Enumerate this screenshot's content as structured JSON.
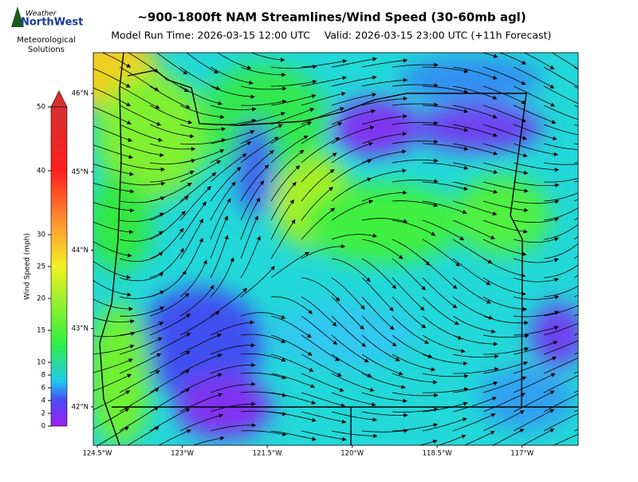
{
  "logo": {
    "brand_top": "Weather",
    "brand_main": "NorthWest",
    "line1": "Meteorological",
    "line2": "Solutions"
  },
  "title": "~900-1800ft NAM Streamlines/Wind Speed (30-60mb agl)",
  "model_run": "Model Run Time: 2026-03-15 12:00 UTC",
  "valid": "Valid: 2026-03-15 23:00 UTC  (+11h Forecast)",
  "map": {
    "lon_lim": [
      -124.57,
      -116.01
    ],
    "lat_lim": [
      41.51,
      46.52
    ],
    "lon_ticks": [
      {
        "value": -124.5,
        "label": "124.5°W"
      },
      {
        "value": -123,
        "label": "123°W"
      },
      {
        "value": -121.5,
        "label": "121.5°W"
      },
      {
        "value": -120,
        "label": "120°W"
      },
      {
        "value": -118.5,
        "label": "118.5°W"
      },
      {
        "value": -117,
        "label": "117°W"
      }
    ],
    "lat_ticks": [
      {
        "value": 46,
        "label": "46°N"
      },
      {
        "value": 45,
        "label": "45°N"
      },
      {
        "value": 44,
        "label": "44°N"
      },
      {
        "value": 43,
        "label": "43°N"
      },
      {
        "value": 42,
        "label": "42°N"
      }
    ]
  },
  "colorbar": {
    "label": "Wind Speed (mph)",
    "lim": [
      0,
      50
    ],
    "ticks": [
      0,
      2,
      4,
      6,
      8,
      10,
      15,
      20,
      25,
      30,
      40,
      50
    ]
  }
}
